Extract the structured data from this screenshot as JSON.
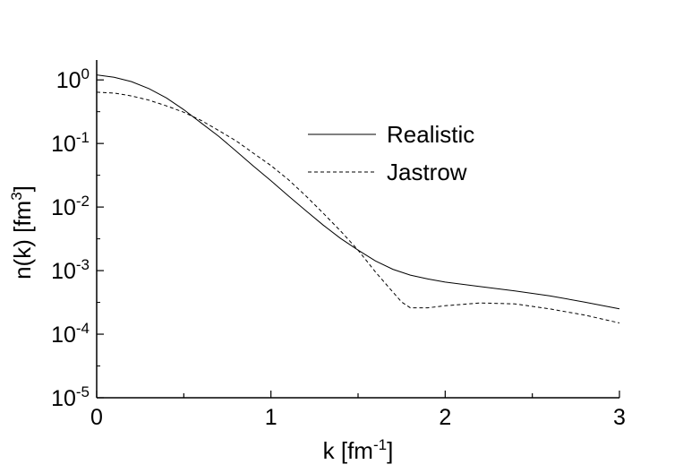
{
  "chart_data": {
    "type": "line",
    "xlabel": {
      "base": "k [fm",
      "sup": "-1",
      "tail": "]"
    },
    "ylabel": {
      "base": "n(k) [fm",
      "sup": "3",
      "tail": "]"
    },
    "xlim": [
      0,
      3
    ],
    "ylim_log10": [
      -5,
      0.2
    ],
    "y_scale": "log",
    "grid": false,
    "legend_placement": "center",
    "x_ticks": [
      {
        "value": 0,
        "label": "0"
      },
      {
        "value": 1,
        "label": "1"
      },
      {
        "value": 2,
        "label": "2"
      },
      {
        "value": 3,
        "label": "3"
      }
    ],
    "y_ticks": [
      {
        "exp": 0,
        "base": "10",
        "sup": "0"
      },
      {
        "exp": -1,
        "base": "10",
        "sup": "-1"
      },
      {
        "exp": -2,
        "base": "10",
        "sup": "-2"
      },
      {
        "exp": -3,
        "base": "10",
        "sup": "-3"
      },
      {
        "exp": -4,
        "base": "10",
        "sup": "-4"
      },
      {
        "exp": -5,
        "base": "10",
        "sup": "-5"
      }
    ],
    "series": [
      {
        "name": "Realistic",
        "style": "solid",
        "x": [
          0,
          0.1,
          0.2,
          0.3,
          0.4,
          0.5,
          0.6,
          0.7,
          0.8,
          0.9,
          1.0,
          1.1,
          1.2,
          1.3,
          1.4,
          1.5,
          1.6,
          1.7,
          1.8,
          1.9,
          2.0,
          2.2,
          2.4,
          2.6,
          2.8,
          3.0
        ],
        "y": [
          1.2,
          1.1,
          0.94,
          0.73,
          0.52,
          0.34,
          0.21,
          0.13,
          0.076,
          0.044,
          0.026,
          0.015,
          0.0088,
          0.0052,
          0.0032,
          0.0021,
          0.00142,
          0.00105,
          0.00085,
          0.00074,
          0.00066,
          0.00056,
          0.00048,
          0.0004,
          0.00032,
          0.00025
        ]
      },
      {
        "name": "Jastrow",
        "style": "dashed",
        "x": [
          0,
          0.1,
          0.2,
          0.3,
          0.4,
          0.5,
          0.6,
          0.7,
          0.8,
          0.9,
          1.0,
          1.1,
          1.2,
          1.3,
          1.4,
          1.5,
          1.6,
          1.7,
          1.75,
          1.8,
          1.9,
          2.0,
          2.2,
          2.4,
          2.6,
          2.8,
          3.0
        ],
        "y": [
          0.64,
          0.62,
          0.56,
          0.48,
          0.39,
          0.31,
          0.23,
          0.16,
          0.11,
          0.07,
          0.045,
          0.027,
          0.015,
          0.008,
          0.0042,
          0.0021,
          0.00095,
          0.00046,
          0.00032,
          0.00026,
          0.00026,
          0.00028,
          0.00031,
          0.0003,
          0.00025,
          0.0002,
          0.00015
        ]
      }
    ]
  }
}
